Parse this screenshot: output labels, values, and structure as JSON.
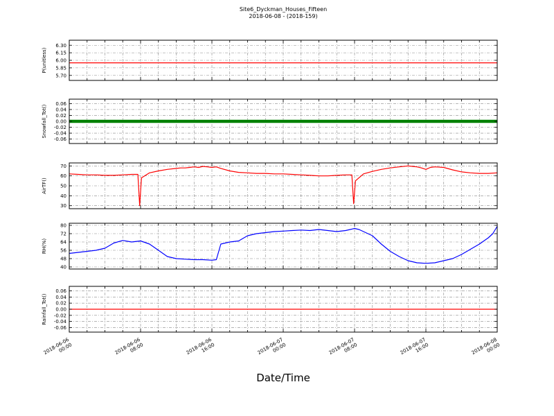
{
  "title": "Site6_Dyckman_Houses_Fifteen",
  "subtitle": "2018-06-08 - (2018-159)",
  "xlabel": "Date/Time",
  "colors": {
    "red_series": "#ff0000",
    "green_series": "#008000",
    "blue_series": "#0000ff",
    "grid": "#888888",
    "frame": "#000000"
  },
  "chart_data": {
    "type": "line",
    "title": "Site6_Dyckman_Houses_Fifteen",
    "subtitle": "2018-06-08 - (2018-159)",
    "xlabel": "Date/Time",
    "x_unit": "hours since 2018-06-06 00:00",
    "x_range": [
      0,
      48
    ],
    "grid": "dash-dot vertical every 2 hours, horizontal at every y tick",
    "legend": "none",
    "x_ticks": [
      {
        "h": 0,
        "date": "2018-06-06",
        "time": "00:00"
      },
      {
        "h": 8,
        "date": "2018-06-06",
        "time": "08:00"
      },
      {
        "h": 16,
        "date": "2018-06-06",
        "time": "16:00"
      },
      {
        "h": 24,
        "date": "2018-06-07",
        "time": "00:00"
      },
      {
        "h": 32,
        "date": "2018-06-07",
        "time": "08:00"
      },
      {
        "h": 40,
        "date": "2018-06-07",
        "time": "16:00"
      },
      {
        "h": 48,
        "date": "2018-06-08",
        "time": "00:00"
      }
    ],
    "panels": [
      {
        "ylabel": "P(unitless)",
        "ylim": [
          5.6,
          6.4
        ],
        "ytick_values": [
          5.7,
          5.85,
          6.0,
          6.15,
          6.3
        ],
        "ytick_labels": [
          "5.70",
          "5.85",
          "6.00",
          "6.15",
          "6.30"
        ],
        "series": [
          {
            "name": "P",
            "color": "#ff0000",
            "width": 1.2,
            "x": [
              0,
              48
            ],
            "y": [
              5.95,
              5.95
            ]
          }
        ]
      },
      {
        "ylabel": "Snowfall_Tot()",
        "ylim": [
          -0.075,
          0.075
        ],
        "ytick_values": [
          -0.06,
          -0.04,
          -0.02,
          0.0,
          0.02,
          0.04,
          0.06
        ],
        "ytick_labels": [
          "-0.06",
          "-0.04",
          "-0.02",
          "0.00",
          "0.02",
          "0.04",
          "0.06"
        ],
        "series": [
          {
            "name": "Snowfall_Tot",
            "color": "#008000",
            "width": 4.5,
            "x": [
              0,
              48
            ],
            "y": [
              0.0,
              0.0
            ]
          }
        ]
      },
      {
        "ylabel": "AirTF()",
        "ylim": [
          27,
          73
        ],
        "ytick_values": [
          30,
          40,
          50,
          60,
          70
        ],
        "ytick_labels": [
          "30",
          "40",
          "50",
          "60",
          "70"
        ],
        "series": [
          {
            "name": "AirTF",
            "color": "#ff0000",
            "width": 1.2,
            "x": [
              0,
              1,
              2,
              3,
              4,
              5,
              6,
              7,
              7.7,
              7.9,
              8.1,
              9,
              10,
              11,
              12,
              12.5,
              13,
              13.5,
              14,
              14.5,
              15,
              15.5,
              16,
              16.5,
              17,
              18,
              19,
              20,
              21,
              22,
              23,
              24,
              25,
              26,
              27,
              28,
              29,
              30,
              31,
              31.7,
              31.9,
              32.1,
              33,
              34,
              35,
              36,
              37,
              38,
              38.5,
              39,
              39.5,
              40,
              40.5,
              41,
              42,
              43,
              44,
              45,
              46,
              47,
              48
            ],
            "y": [
              62,
              61.5,
              61,
              61,
              60.5,
              60.5,
              61,
              61.5,
              61.5,
              30,
              58,
              63,
              65,
              66.5,
              67.5,
              68,
              68,
              68.5,
              69,
              68.5,
              69.5,
              69,
              68.5,
              69,
              67.5,
              65,
              63.5,
              63,
              62.5,
              62.5,
              62,
              62,
              61.5,
              61,
              60.5,
              60,
              60,
              60.5,
              61,
              61,
              32,
              55,
              62,
              64.5,
              66.5,
              68,
              69,
              70,
              69.5,
              69,
              68,
              66.5,
              68.5,
              69,
              68.5,
              66,
              64,
              63,
              62.5,
              62.5,
              63
            ]
          }
        ]
      },
      {
        "ylabel": "RH(%)",
        "ylim": [
          38,
          82
        ],
        "ytick_values": [
          40,
          48,
          56,
          64,
          72,
          80
        ],
        "ytick_labels": [
          "40",
          "48",
          "56",
          "64",
          "72",
          "80"
        ],
        "series": [
          {
            "name": "RH",
            "color": "#0000ff",
            "width": 1.2,
            "x": [
              0,
              1,
              2,
              3,
              4,
              5,
              6,
              7,
              8,
              9,
              10,
              11,
              12,
              13,
              14,
              15,
              16,
              16.5,
              17,
              18,
              19,
              20,
              21,
              22,
              23,
              24,
              25,
              26,
              27,
              28,
              29,
              30,
              31,
              32,
              32.5,
              33,
              34,
              35,
              36,
              37,
              38,
              39,
              40,
              41,
              42,
              43,
              44,
              45,
              46,
              47,
              47.5,
              48
            ],
            "y": [
              53,
              54,
              55,
              56,
              58,
              63,
              65.5,
              64,
              65,
              62,
              56,
              50,
              48,
              47.5,
              47,
              47,
              46.5,
              47,
              62,
              64,
              65,
              70,
              72,
              73,
              74,
              74.5,
              75,
              75.5,
              75,
              76,
              75,
              74,
              75,
              77,
              76,
              74,
              70,
              62,
              55,
              50,
              46,
              44,
              43.5,
              44,
              46,
              48,
              52,
              57,
              62,
              68,
              72,
              79
            ]
          }
        ]
      },
      {
        "ylabel": "Rainfall_Tot()",
        "ylim": [
          -0.075,
          0.075
        ],
        "ytick_values": [
          -0.06,
          -0.04,
          -0.02,
          0.0,
          0.02,
          0.04,
          0.06
        ],
        "ytick_labels": [
          "-0.06",
          "-0.04",
          "-0.02",
          "0.00",
          "0.02",
          "0.04",
          "0.06"
        ],
        "series": [
          {
            "name": "Rainfall_Tot",
            "color": "#ff0000",
            "width": 1.2,
            "x": [
              0,
              48
            ],
            "y": [
              0.0,
              0.0
            ]
          }
        ]
      }
    ]
  }
}
